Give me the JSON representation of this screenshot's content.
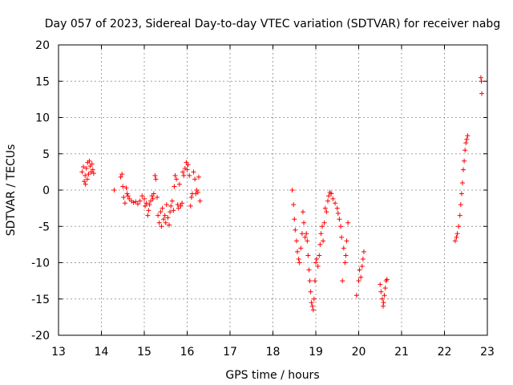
{
  "chart_data": {
    "type": "scatter",
    "title": "Day 057 of 2023, Sidereal Day-to-day VTEC variation (SDTVAR) for receiver nabg",
    "xlabel": "GPS time / hours",
    "ylabel": "SDTVAR / TECUs",
    "xlim": [
      13,
      23
    ],
    "ylim": [
      -20,
      20
    ],
    "xticks": [
      "13",
      "14",
      "15",
      "16",
      "17",
      "18",
      "19",
      "20",
      "21",
      "22",
      "23"
    ],
    "yticks": [
      "-20",
      "-15",
      "-10",
      "-5",
      "0",
      "5",
      "10",
      "15",
      "20"
    ],
    "grid": true,
    "series": [
      {
        "name": "SDTVAR",
        "color": "#ff0000",
        "marker": "plus",
        "points": [
          [
            13.55,
            2.5
          ],
          [
            13.58,
            3.2
          ],
          [
            13.6,
            1.2
          ],
          [
            13.62,
            2.0
          ],
          [
            13.63,
            0.8
          ],
          [
            13.65,
            3.0
          ],
          [
            13.67,
            1.5
          ],
          [
            13.68,
            3.8
          ],
          [
            13.7,
            2.2
          ],
          [
            13.72,
            4.0
          ],
          [
            13.74,
            3.3
          ],
          [
            13.76,
            2.5
          ],
          [
            13.78,
            3.6
          ],
          [
            13.8,
            2.8
          ],
          [
            13.82,
            2.3
          ],
          [
            14.3,
            0.0
          ],
          [
            14.45,
            1.8
          ],
          [
            14.48,
            2.2
          ],
          [
            14.5,
            0.5
          ],
          [
            14.52,
            -1.0
          ],
          [
            14.55,
            -1.8
          ],
          [
            14.58,
            0.3
          ],
          [
            14.6,
            -0.5
          ],
          [
            14.62,
            -0.8
          ],
          [
            14.65,
            -1.2
          ],
          [
            14.7,
            -1.5
          ],
          [
            14.75,
            -1.7
          ],
          [
            14.8,
            -1.6
          ],
          [
            14.85,
            -1.9
          ],
          [
            14.9,
            -1.5
          ],
          [
            14.95,
            -0.8
          ],
          [
            15.0,
            -1.2
          ],
          [
            15.02,
            -2.2
          ],
          [
            15.05,
            -1.8
          ],
          [
            15.08,
            -3.5
          ],
          [
            15.1,
            -2.8
          ],
          [
            15.12,
            -2.0
          ],
          [
            15.15,
            -1.5
          ],
          [
            15.18,
            -0.8
          ],
          [
            15.2,
            -1.2
          ],
          [
            15.22,
            -0.5
          ],
          [
            15.25,
            2.0
          ],
          [
            15.27,
            1.5
          ],
          [
            15.3,
            -1.0
          ],
          [
            15.32,
            -3.5
          ],
          [
            15.35,
            -4.5
          ],
          [
            15.38,
            -3.0
          ],
          [
            15.4,
            -5.0
          ],
          [
            15.42,
            -2.5
          ],
          [
            15.45,
            -4.0
          ],
          [
            15.48,
            -3.5
          ],
          [
            15.5,
            -4.5
          ],
          [
            15.52,
            -2.0
          ],
          [
            15.55,
            -3.8
          ],
          [
            15.58,
            -4.8
          ],
          [
            15.6,
            -3.0
          ],
          [
            15.62,
            -2.2
          ],
          [
            15.65,
            -1.5
          ],
          [
            15.68,
            -2.8
          ],
          [
            15.7,
            0.5
          ],
          [
            15.72,
            2.0
          ],
          [
            15.75,
            1.5
          ],
          [
            15.78,
            -2.0
          ],
          [
            15.8,
            -2.5
          ],
          [
            15.82,
            0.8
          ],
          [
            15.85,
            -2.2
          ],
          [
            15.88,
            -1.8
          ],
          [
            15.9,
            2.5
          ],
          [
            15.92,
            2.0
          ],
          [
            15.95,
            3.0
          ],
          [
            15.98,
            3.8
          ],
          [
            16.0,
            2.8
          ],
          [
            16.02,
            3.5
          ],
          [
            16.05,
            2.0
          ],
          [
            16.08,
            -2.2
          ],
          [
            16.1,
            -1.0
          ],
          [
            16.12,
            -0.5
          ],
          [
            16.15,
            2.5
          ],
          [
            16.18,
            1.5
          ],
          [
            16.2,
            -0.5
          ],
          [
            16.22,
            0.0
          ],
          [
            16.25,
            -0.3
          ],
          [
            16.27,
            1.8
          ],
          [
            16.3,
            -1.5
          ],
          [
            18.45,
            0.0
          ],
          [
            18.48,
            -2.0
          ],
          [
            18.5,
            -4.0
          ],
          [
            18.52,
            -5.5
          ],
          [
            18.55,
            -7.0
          ],
          [
            18.57,
            -8.5
          ],
          [
            18.6,
            -9.5
          ],
          [
            18.62,
            -10.0
          ],
          [
            18.65,
            -8.0
          ],
          [
            18.68,
            -6.0
          ],
          [
            18.7,
            -3.0
          ],
          [
            18.72,
            -4.5
          ],
          [
            18.75,
            -6.5
          ],
          [
            18.78,
            -6.0
          ],
          [
            18.8,
            -7.0
          ],
          [
            18.82,
            -9.0
          ],
          [
            18.84,
            -11.0
          ],
          [
            18.86,
            -12.5
          ],
          [
            18.88,
            -14.0
          ],
          [
            18.9,
            -15.5
          ],
          [
            18.92,
            -16.0
          ],
          [
            18.94,
            -16.5
          ],
          [
            18.96,
            -15.0
          ],
          [
            18.98,
            -12.5
          ],
          [
            19.0,
            -10.0
          ],
          [
            19.02,
            -9.5
          ],
          [
            19.05,
            -10.5
          ],
          [
            19.08,
            -9.0
          ],
          [
            19.1,
            -7.5
          ],
          [
            19.12,
            -6.0
          ],
          [
            19.15,
            -5.0
          ],
          [
            19.17,
            -7.0
          ],
          [
            19.2,
            -4.5
          ],
          [
            19.22,
            -2.5
          ],
          [
            19.25,
            -3.0
          ],
          [
            19.28,
            -1.5
          ],
          [
            19.3,
            -0.8
          ],
          [
            19.33,
            -0.3
          ],
          [
            19.36,
            -0.5
          ],
          [
            19.4,
            -1.2
          ],
          [
            19.45,
            -1.8
          ],
          [
            19.5,
            -2.5
          ],
          [
            19.52,
            -3.2
          ],
          [
            19.55,
            -4.0
          ],
          [
            19.58,
            -5.0
          ],
          [
            19.6,
            -6.5
          ],
          [
            19.62,
            -12.5
          ],
          [
            19.65,
            -8.0
          ],
          [
            19.68,
            -10.0
          ],
          [
            19.7,
            -9.0
          ],
          [
            19.72,
            -7.0
          ],
          [
            19.75,
            -4.5
          ],
          [
            19.95,
            -14.5
          ],
          [
            20.0,
            -12.5
          ],
          [
            20.02,
            -11.0
          ],
          [
            20.05,
            -12.0
          ],
          [
            20.08,
            -10.5
          ],
          [
            20.1,
            -9.5
          ],
          [
            20.12,
            -8.5
          ],
          [
            20.5,
            -13.0
          ],
          [
            20.52,
            -14.0
          ],
          [
            20.55,
            -15.0
          ],
          [
            20.57,
            -16.0
          ],
          [
            20.58,
            -15.5
          ],
          [
            20.6,
            -14.5
          ],
          [
            20.62,
            -13.5
          ],
          [
            20.64,
            -12.5
          ],
          [
            20.66,
            -12.3
          ],
          [
            22.25,
            -7.0
          ],
          [
            22.28,
            -6.5
          ],
          [
            22.3,
            -6.0
          ],
          [
            22.33,
            -5.0
          ],
          [
            22.36,
            -3.5
          ],
          [
            22.38,
            -2.0
          ],
          [
            22.4,
            -0.5
          ],
          [
            22.42,
            1.0
          ],
          [
            22.44,
            2.8
          ],
          [
            22.46,
            4.0
          ],
          [
            22.48,
            5.5
          ],
          [
            22.5,
            6.5
          ],
          [
            22.52,
            7.0
          ],
          [
            22.54,
            7.5
          ],
          [
            22.85,
            15.5
          ],
          [
            22.86,
            15.0
          ],
          [
            22.87,
            13.3
          ]
        ]
      }
    ]
  }
}
